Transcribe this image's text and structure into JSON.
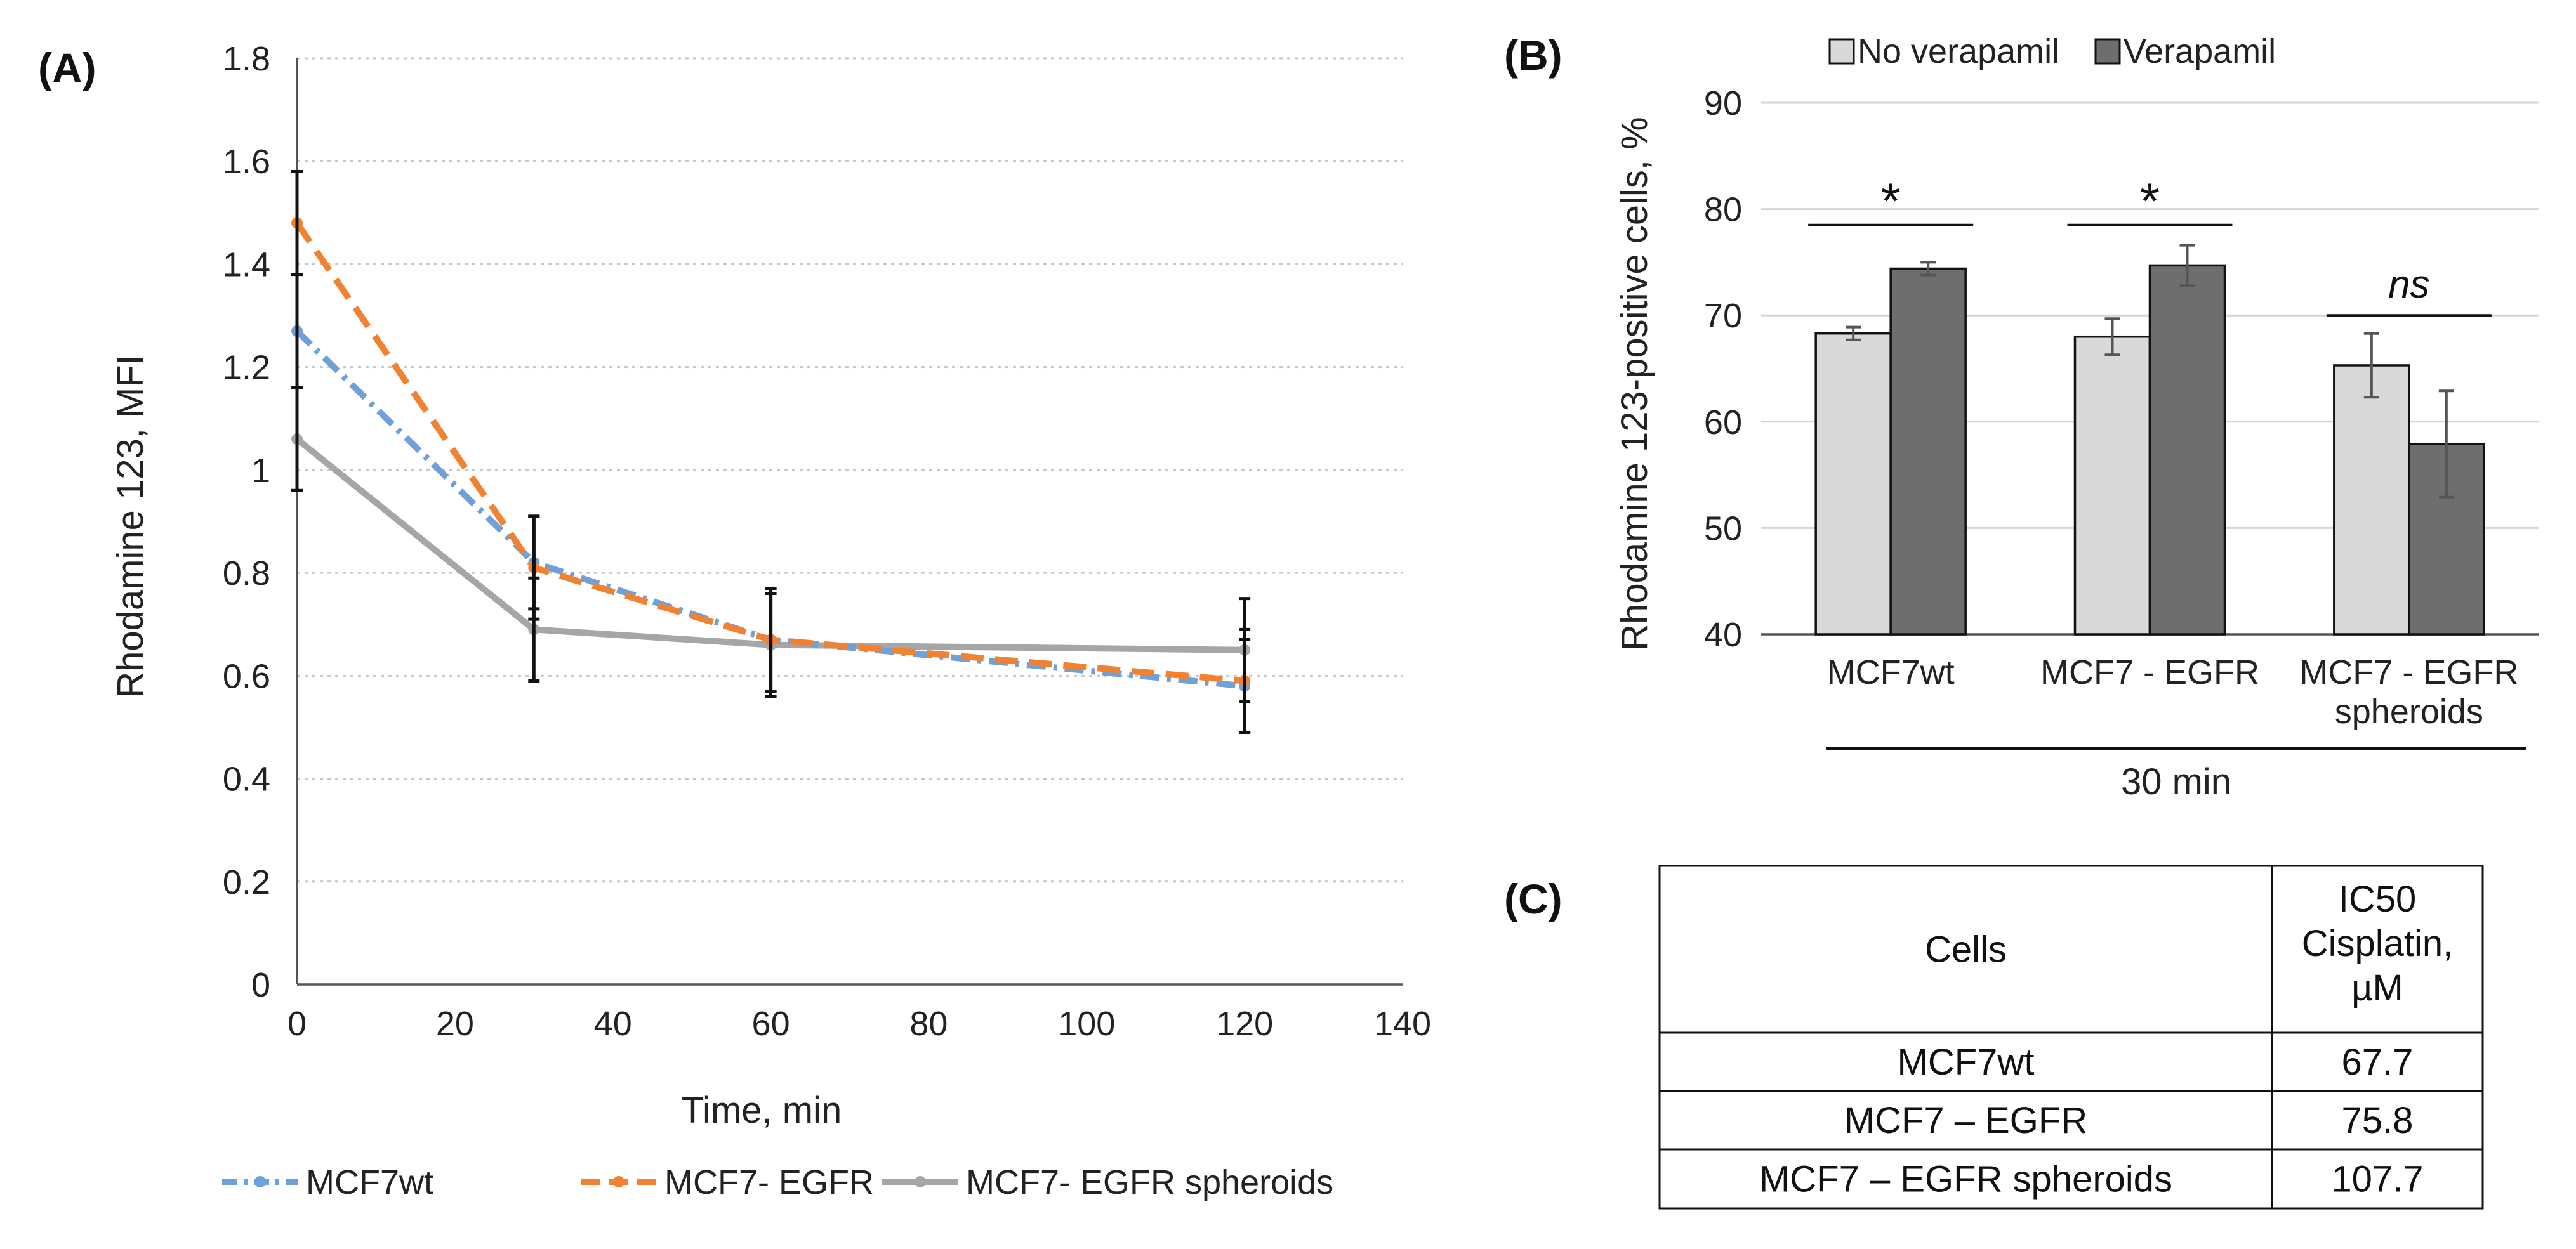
{
  "chart_data": [
    {
      "panel_label": "(A)",
      "type": "line",
      "title": "",
      "xlabel": "Time, min",
      "ylabel": "Rhodamine 123, MFI",
      "xlim": [
        0,
        140
      ],
      "ylim": [
        0,
        1.8
      ],
      "x_ticks": [
        "0",
        "20",
        "40",
        "60",
        "80",
        "100",
        "120",
        "140"
      ],
      "y_ticks": [
        "0",
        "0.2",
        "0.4",
        "0.6",
        "0.8",
        "1",
        "1.2",
        "1.4",
        "1.6",
        "1.8"
      ],
      "x": [
        0,
        30,
        60,
        120
      ],
      "grid": "horizontal dashed",
      "legend_position": "bottom",
      "series": [
        {
          "name": "MCF7wt",
          "color": "#6fa0d8",
          "style": "dash-dot",
          "values": [
            1.27,
            0.82,
            0.67,
            0.58
          ],
          "errors": [
            0.31,
            0.09,
            0.1,
            0.09
          ]
        },
        {
          "name": "MCF7- EGFR",
          "color": "#f08232",
          "style": "dashed",
          "values": [
            1.48,
            0.81,
            0.67,
            0.59
          ],
          "errors": [
            0.1,
            0.1,
            0.1,
            0.1
          ]
        },
        {
          "name": "MCF7- EGFR spheroids",
          "color": "#a6a6a6",
          "style": "solid",
          "values": [
            1.06,
            0.69,
            0.66,
            0.65
          ],
          "errors": [
            0.1,
            0.1,
            0.1,
            0.1
          ]
        }
      ]
    },
    {
      "panel_label": "(B)",
      "type": "bar",
      "title": "",
      "xlabel": "30 min",
      "ylabel": "Rhodamine 123-positive cells, %",
      "ylim": [
        40,
        90
      ],
      "y_ticks": [
        "40",
        "50",
        "60",
        "70",
        "80",
        "90"
      ],
      "categories": [
        [
          "MCF7wt"
        ],
        [
          "MCF7 - EGFR"
        ],
        [
          "MCF7 - EGFR",
          "spheroids"
        ]
      ],
      "legend_position": "top",
      "series": [
        {
          "name": "No verapamil",
          "color": "#d9d9d9",
          "values": [
            68.3,
            68.0,
            65.3
          ],
          "errors": [
            0.6,
            1.7,
            3.0
          ]
        },
        {
          "name": "Verapamil",
          "color": "#6e6e6e",
          "values": [
            74.4,
            74.7,
            57.9
          ],
          "errors": [
            0.6,
            1.9,
            5.0
          ]
        }
      ],
      "annotations": [
        "*",
        "*",
        "ns"
      ]
    },
    {
      "panel_label": "(C)",
      "type": "table",
      "columns": [
        "Cells",
        [
          "IC50",
          "Cisplatin,",
          "µM"
        ]
      ],
      "rows": [
        [
          "MCF7wt",
          "67.7"
        ],
        [
          "MCF7 – EGFR",
          "75.8"
        ],
        [
          "MCF7 – EGFR spheroids",
          "107.7"
        ]
      ]
    }
  ]
}
